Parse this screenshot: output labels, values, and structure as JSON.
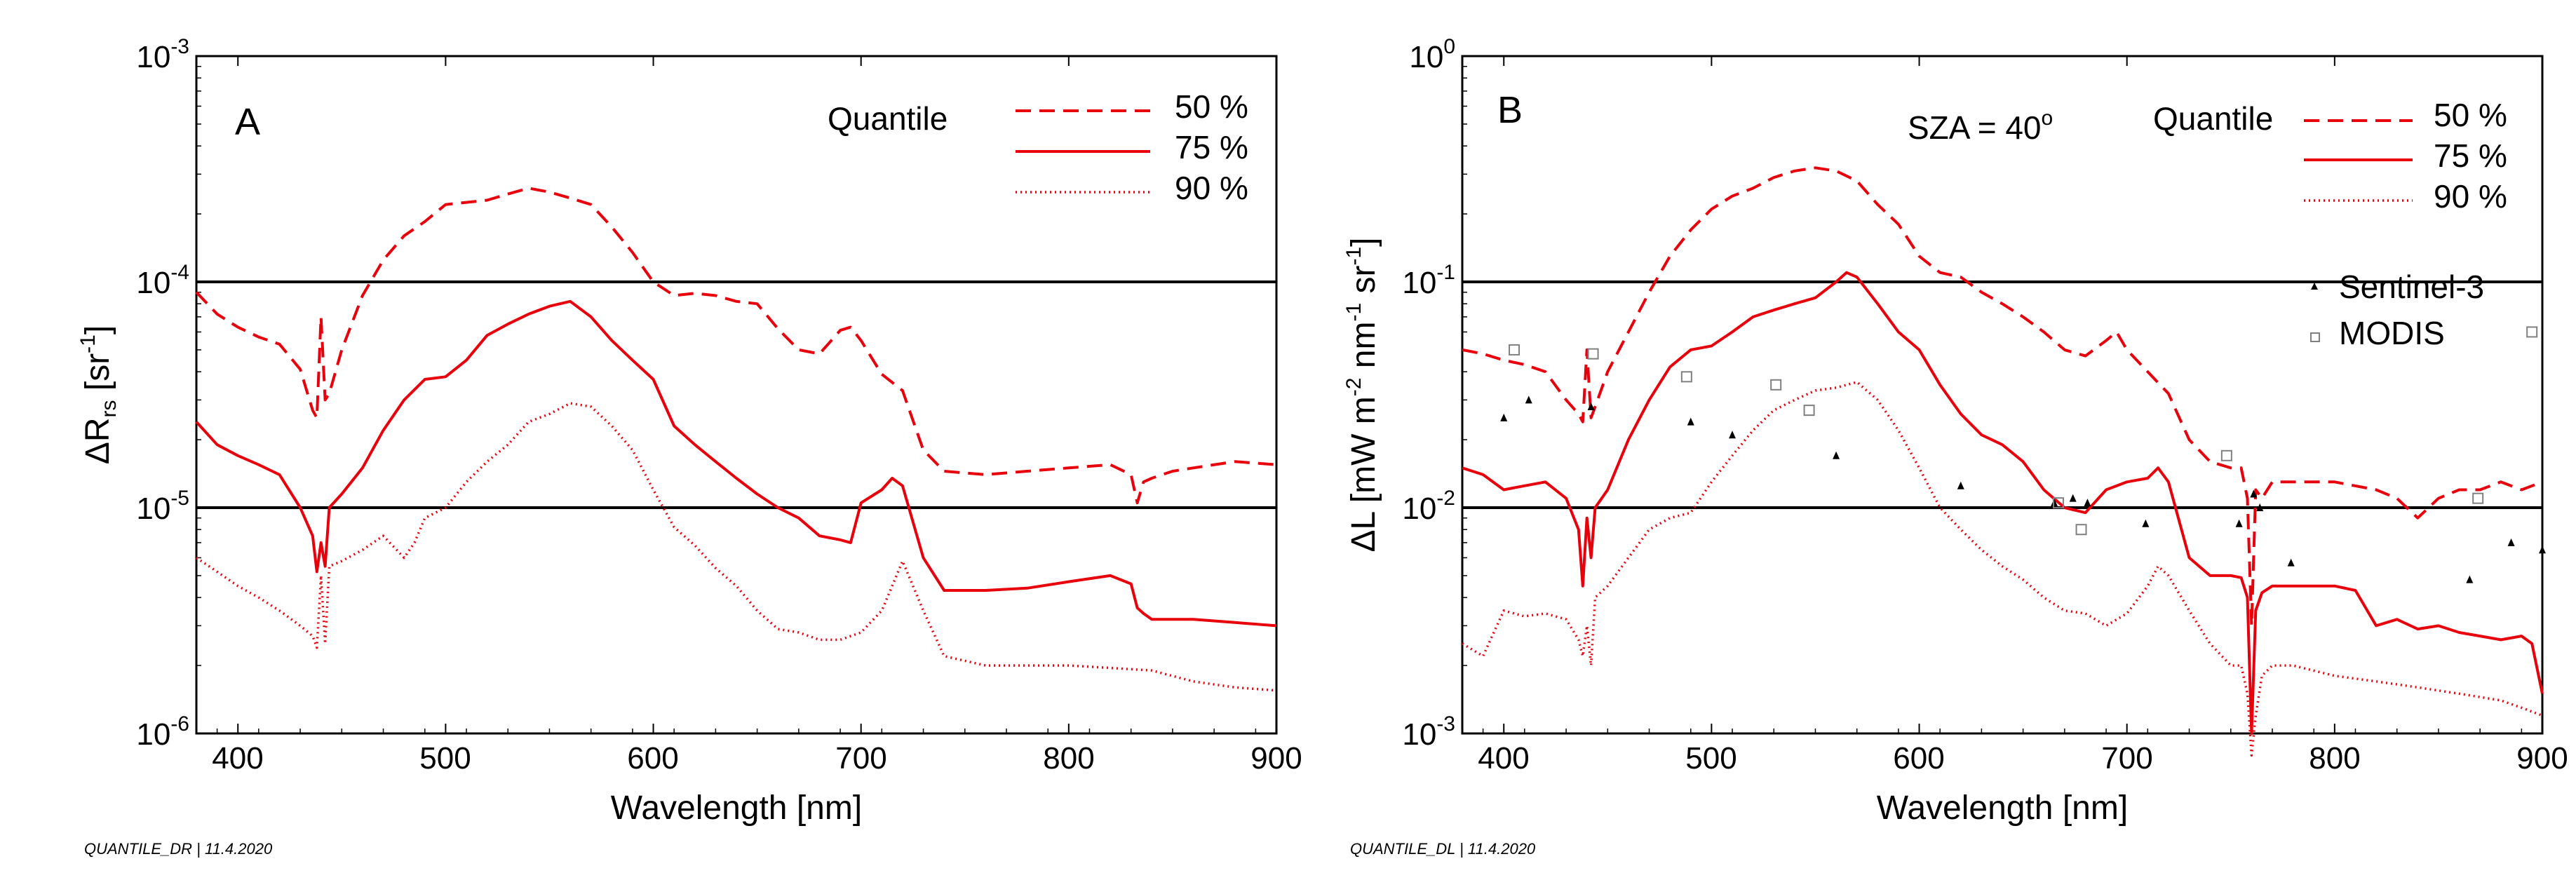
{
  "chart_data": [
    {
      "type": "line",
      "panel_label": "A",
      "x_label": "Wavelength [nm]",
      "y_label": {
        "delta": "Δ",
        "main": "R",
        "sub": "rs",
        "bracket_open": " [sr",
        "exp": "-1",
        "bracket_close": "]"
      },
      "xlim": [
        380,
        900
      ],
      "ylim": [
        1e-06,
        0.001
      ],
      "y_scale": "log",
      "x_ticks": [
        "400",
        "500",
        "600",
        "700",
        "800",
        "900"
      ],
      "y_ticks": [
        {
          "base": "10",
          "exp": "-6"
        },
        {
          "base": "10",
          "exp": "-5"
        },
        {
          "base": "10",
          "exp": "-4"
        },
        {
          "base": "10",
          "exp": "-3"
        }
      ],
      "reference_lines": [
        1e-05,
        0.0001
      ],
      "legend": {
        "title": "Quantile",
        "entries": [
          "50 %",
          "75 %",
          "90 %"
        ],
        "position": "top-right"
      },
      "footnote": "QUANTILE_DR | 11.4.2020",
      "series": [
        {
          "name": "50 %",
          "style": "dashed",
          "color": "#e8000b",
          "x": [
            380,
            390,
            400,
            410,
            420,
            430,
            436,
            438,
            440,
            442,
            444,
            450,
            460,
            470,
            480,
            490,
            500,
            510,
            520,
            530,
            540,
            550,
            560,
            570,
            580,
            590,
            600,
            610,
            620,
            630,
            640,
            650,
            660,
            670,
            680,
            690,
            695,
            700,
            710,
            720,
            730,
            740,
            760,
            780,
            800,
            820,
            830,
            833,
            836,
            840,
            850,
            860,
            880,
            900
          ],
          "y": [
            9e-05,
            7.2e-05,
            6.3e-05,
            5.7e-05,
            5.3e-05,
            4.1e-05,
            2.7e-05,
            2.5e-05,
            7e-05,
            3e-05,
            3.2e-05,
            5e-05,
            8.7e-05,
            0.000125,
            0.00016,
            0.000185,
            0.00022,
            0.000225,
            0.00023,
            0.000245,
            0.00026,
            0.00025,
            0.000235,
            0.00022,
            0.000175,
            0.000135,
            0.0001,
            8.7e-05,
            8.9e-05,
            8.7e-05,
            8.2e-05,
            8e-05,
            6.2e-05,
            5e-05,
            4.8e-05,
            6.1e-05,
            6.3e-05,
            5.5e-05,
            3.9e-05,
            3.3e-05,
            1.8e-05,
            1.45e-05,
            1.4e-05,
            1.45e-05,
            1.5e-05,
            1.55e-05,
            1.4e-05,
            1.05e-05,
            1.3e-05,
            1.35e-05,
            1.45e-05,
            1.5e-05,
            1.6e-05,
            1.55e-05
          ]
        },
        {
          "name": "75 %",
          "style": "solid",
          "color": "#e8000b",
          "x": [
            380,
            390,
            400,
            410,
            420,
            430,
            436,
            438,
            440,
            442,
            444,
            450,
            460,
            470,
            480,
            490,
            500,
            510,
            520,
            530,
            540,
            550,
            560,
            570,
            580,
            590,
            600,
            610,
            620,
            630,
            640,
            650,
            660,
            670,
            680,
            690,
            695,
            700,
            710,
            715,
            720,
            730,
            740,
            760,
            780,
            800,
            820,
            830,
            833,
            836,
            840,
            860,
            880,
            900
          ],
          "y": [
            2.4e-05,
            1.9e-05,
            1.7e-05,
            1.55e-05,
            1.4e-05,
            1e-05,
            7.5e-06,
            5.2e-06,
            7e-06,
            5.5e-06,
            1e-05,
            1.15e-05,
            1.5e-05,
            2.2e-05,
            3e-05,
            3.7e-05,
            3.8e-05,
            4.5e-05,
            5.8e-05,
            6.5e-05,
            7.2e-05,
            7.8e-05,
            8.2e-05,
            7e-05,
            5.5e-05,
            4.5e-05,
            3.7e-05,
            2.3e-05,
            1.9e-05,
            1.6e-05,
            1.35e-05,
            1.15e-05,
            1e-05,
            9e-06,
            7.5e-06,
            7.2e-06,
            7e-06,
            1.05e-05,
            1.2e-05,
            1.35e-05,
            1.25e-05,
            6e-06,
            4.3e-06,
            4.3e-06,
            4.4e-06,
            4.7e-06,
            5e-06,
            4.6e-06,
            3.6e-06,
            3.4e-06,
            3.2e-06,
            3.2e-06,
            3.1e-06,
            3e-06
          ]
        },
        {
          "name": "90 %",
          "style": "dotted",
          "color": "#e8000b",
          "x": [
            380,
            390,
            400,
            410,
            420,
            430,
            436,
            438,
            440,
            442,
            444,
            450,
            460,
            470,
            480,
            485,
            490,
            500,
            510,
            520,
            530,
            540,
            550,
            560,
            570,
            580,
            590,
            600,
            610,
            620,
            630,
            640,
            650,
            660,
            670,
            680,
            690,
            700,
            710,
            715,
            720,
            730,
            740,
            760,
            780,
            800,
            820,
            840,
            860,
            880,
            900
          ],
          "y": [
            6e-06,
            5.2e-06,
            4.5e-06,
            4e-06,
            3.5e-06,
            3e-06,
            2.7e-06,
            2.4e-06,
            5e-06,
            2.5e-06,
            5.5e-06,
            5.8e-06,
            6.5e-06,
            7.5e-06,
            6e-06,
            7e-06,
            9e-06,
            1e-05,
            1.3e-05,
            1.6e-05,
            1.9e-05,
            2.4e-05,
            2.6e-05,
            2.9e-05,
            2.8e-05,
            2.3e-05,
            1.8e-05,
            1.2e-05,
            8.2e-06,
            6.8e-06,
            5.4e-06,
            4.5e-06,
            3.5e-06,
            2.9e-06,
            2.8e-06,
            2.6e-06,
            2.6e-06,
            2.8e-06,
            3.5e-06,
            4.5e-06,
            5.8e-06,
            3.5e-06,
            2.2e-06,
            2e-06,
            2e-06,
            2e-06,
            1.95e-06,
            1.9e-06,
            1.7e-06,
            1.6e-06,
            1.55e-06
          ]
        }
      ]
    },
    {
      "type": "line",
      "panel_label": "B",
      "x_label": "Wavelength [nm]",
      "y_label": {
        "delta": "Δ",
        "part1": "L [mW m",
        "exp1": "-2",
        "part2": " nm",
        "exp2": "-1",
        "part3": " sr",
        "exp3": "-1",
        "part4": "]"
      },
      "xlim": [
        380,
        900
      ],
      "ylim": [
        0.001,
        1
      ],
      "y_scale": "log",
      "x_ticks": [
        "400",
        "500",
        "600",
        "700",
        "800",
        "900"
      ],
      "y_ticks": [
        {
          "base": "10",
          "exp": "-3"
        },
        {
          "base": "10",
          "exp": "-2"
        },
        {
          "base": "10",
          "exp": "-1"
        },
        {
          "base": "10",
          "exp": "0"
        }
      ],
      "reference_lines": [
        0.01,
        0.1
      ],
      "annotation": {
        "text": "SZA = 40",
        "exp": "o"
      },
      "legend": {
        "title": "Quantile",
        "entries": [
          "50 %",
          "75 %",
          "90 %"
        ],
        "position": "top-right"
      },
      "legend2": {
        "entries": [
          "Sentinel-3",
          "MODIS"
        ],
        "position": "right"
      },
      "footnote": "QUANTILE_DL | 11.4.2020",
      "series": [
        {
          "name": "50 %",
          "style": "dashed",
          "color": "#e8000b",
          "x": [
            380,
            390,
            400,
            410,
            420,
            430,
            436,
            438,
            440,
            442,
            444,
            450,
            460,
            470,
            480,
            490,
            500,
            510,
            520,
            530,
            540,
            550,
            560,
            570,
            580,
            590,
            600,
            610,
            620,
            630,
            640,
            650,
            660,
            670,
            680,
            690,
            695,
            700,
            710,
            720,
            730,
            740,
            750,
            755,
            758,
            760,
            762,
            765,
            770,
            780,
            800,
            820,
            830,
            840,
            850,
            860,
            870,
            880,
            890,
            900
          ],
          "y": [
            0.05,
            0.048,
            0.045,
            0.043,
            0.04,
            0.03,
            0.026,
            0.024,
            0.05,
            0.025,
            0.028,
            0.04,
            0.06,
            0.09,
            0.13,
            0.17,
            0.21,
            0.24,
            0.26,
            0.29,
            0.31,
            0.32,
            0.31,
            0.28,
            0.22,
            0.18,
            0.13,
            0.11,
            0.105,
            0.09,
            0.08,
            0.07,
            0.06,
            0.05,
            0.047,
            0.055,
            0.06,
            0.05,
            0.04,
            0.032,
            0.02,
            0.016,
            0.015,
            0.015,
            0.011,
            0.003,
            0.012,
            0.011,
            0.013,
            0.013,
            0.013,
            0.012,
            0.011,
            0.009,
            0.011,
            0.012,
            0.012,
            0.013,
            0.012,
            0.013
          ]
        },
        {
          "name": "75 %",
          "style": "solid",
          "color": "#e8000b",
          "x": [
            380,
            390,
            400,
            410,
            420,
            430,
            436,
            438,
            440,
            442,
            444,
            450,
            460,
            470,
            480,
            490,
            500,
            510,
            520,
            530,
            540,
            550,
            560,
            565,
            570,
            580,
            590,
            600,
            610,
            620,
            630,
            640,
            650,
            660,
            670,
            680,
            690,
            700,
            710,
            715,
            720,
            730,
            740,
            750,
            755,
            758,
            760,
            762,
            765,
            770,
            780,
            800,
            810,
            820,
            830,
            840,
            850,
            860,
            870,
            880,
            890,
            895,
            900
          ],
          "y": [
            0.015,
            0.014,
            0.012,
            0.0125,
            0.013,
            0.011,
            0.008,
            0.0045,
            0.009,
            0.006,
            0.01,
            0.012,
            0.02,
            0.03,
            0.042,
            0.05,
            0.052,
            0.06,
            0.07,
            0.075,
            0.08,
            0.085,
            0.1,
            0.11,
            0.105,
            0.08,
            0.06,
            0.05,
            0.035,
            0.026,
            0.021,
            0.019,
            0.016,
            0.012,
            0.01,
            0.0095,
            0.012,
            0.013,
            0.0135,
            0.015,
            0.013,
            0.006,
            0.005,
            0.005,
            0.0049,
            0.004,
            0.001,
            0.0035,
            0.0042,
            0.0045,
            0.0045,
            0.0045,
            0.0043,
            0.003,
            0.0032,
            0.0029,
            0.003,
            0.0028,
            0.0027,
            0.0026,
            0.0027,
            0.0025,
            0.0015
          ]
        },
        {
          "name": "90 %",
          "style": "dotted",
          "color": "#e8000b",
          "x": [
            380,
            390,
            400,
            410,
            420,
            430,
            436,
            438,
            440,
            442,
            444,
            450,
            460,
            470,
            480,
            490,
            500,
            510,
            520,
            530,
            540,
            550,
            560,
            570,
            580,
            590,
            600,
            610,
            620,
            630,
            640,
            650,
            660,
            670,
            680,
            690,
            700,
            710,
            715,
            720,
            730,
            740,
            750,
            755,
            758,
            760,
            762,
            765,
            770,
            780,
            800,
            820,
            840,
            860,
            880,
            890,
            900
          ],
          "y": [
            0.0025,
            0.0022,
            0.0035,
            0.0033,
            0.0034,
            0.0032,
            0.0026,
            0.0022,
            0.003,
            0.002,
            0.004,
            0.0045,
            0.006,
            0.008,
            0.009,
            0.0095,
            0.013,
            0.017,
            0.022,
            0.027,
            0.03,
            0.033,
            0.034,
            0.036,
            0.03,
            0.022,
            0.015,
            0.01,
            0.008,
            0.0065,
            0.0055,
            0.0048,
            0.004,
            0.0035,
            0.0034,
            0.003,
            0.0034,
            0.0045,
            0.0055,
            0.005,
            0.0035,
            0.0025,
            0.002,
            0.002,
            0.0015,
            0.0008,
            0.0012,
            0.0018,
            0.002,
            0.002,
            0.0018,
            0.0017,
            0.0016,
            0.0015,
            0.0014,
            0.0013,
            0.0012
          ]
        }
      ],
      "markers": [
        {
          "name": "Sentinel-3",
          "marker": "filled-triangle",
          "color": "#000000",
          "x": [
            400,
            412,
            442,
            490,
            510,
            560,
            620,
            665,
            674,
            681,
            709,
            754,
            761,
            764,
            779,
            865,
            885,
            900
          ],
          "y": [
            0.025,
            0.03,
            0.028,
            0.024,
            0.021,
            0.017,
            0.0125,
            0.0105,
            0.011,
            0.0105,
            0.0085,
            0.0085,
            0.0115,
            0.01,
            0.0057,
            0.0048,
            0.007,
            0.0065
          ]
        },
        {
          "name": "MODIS",
          "marker": "open-square",
          "color": "#808080",
          "x": [
            405,
            443,
            488,
            531,
            547,
            667,
            678,
            748,
            869,
            895
          ],
          "y": [
            0.05,
            0.048,
            0.038,
            0.035,
            0.027,
            0.0105,
            0.008,
            0.017,
            0.011,
            0.06
          ]
        }
      ]
    }
  ]
}
